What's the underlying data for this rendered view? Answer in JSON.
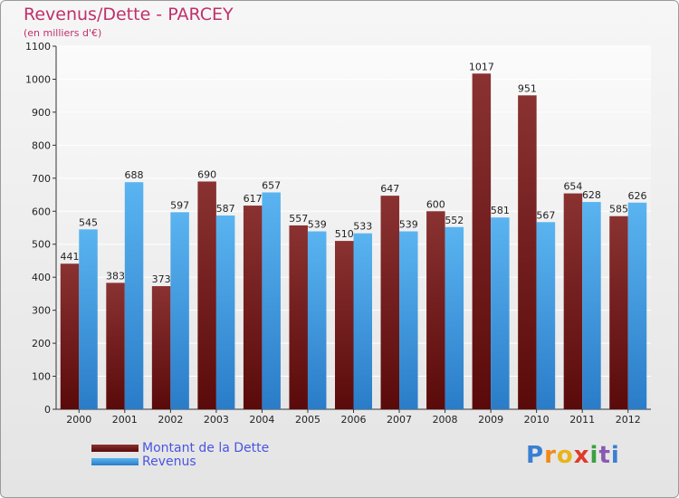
{
  "title": "Revenus/Dette - PARCEY",
  "subtitle": "(en milliers d'€)",
  "logo": {
    "letters": [
      "P",
      "r",
      "o",
      "x",
      "i",
      "t",
      "i"
    ],
    "colors": [
      "#3a7fd4",
      "#f08a1a",
      "#e8b41a",
      "#e03a2a",
      "#3aa040",
      "#8a5ab0",
      "#3a7fd4"
    ]
  },
  "chart_data": {
    "type": "bar",
    "title": "Revenus/Dette - PARCEY",
    "subtitle": "(en milliers d'€)",
    "categories": [
      "2000",
      "2001",
      "2002",
      "2003",
      "2004",
      "2005",
      "2006",
      "2007",
      "2008",
      "2009",
      "2010",
      "2011",
      "2012"
    ],
    "series": [
      {
        "name": "Montant de la Dette",
        "color": "#6e1a1a",
        "values": [
          441,
          383,
          373,
          690,
          617,
          557,
          510,
          647,
          600,
          1017,
          951,
          654,
          585
        ]
      },
      {
        "name": "Revenus",
        "color": "#3a98e0",
        "values": [
          545,
          688,
          597,
          587,
          657,
          539,
          533,
          539,
          552,
          581,
          567,
          628,
          626
        ]
      }
    ],
    "ylim": [
      0,
      1100
    ],
    "yticks": [
      0,
      100,
      200,
      300,
      400,
      500,
      600,
      700,
      800,
      900,
      1000,
      1100
    ],
    "grid": true,
    "legend": "bottom-left"
  }
}
